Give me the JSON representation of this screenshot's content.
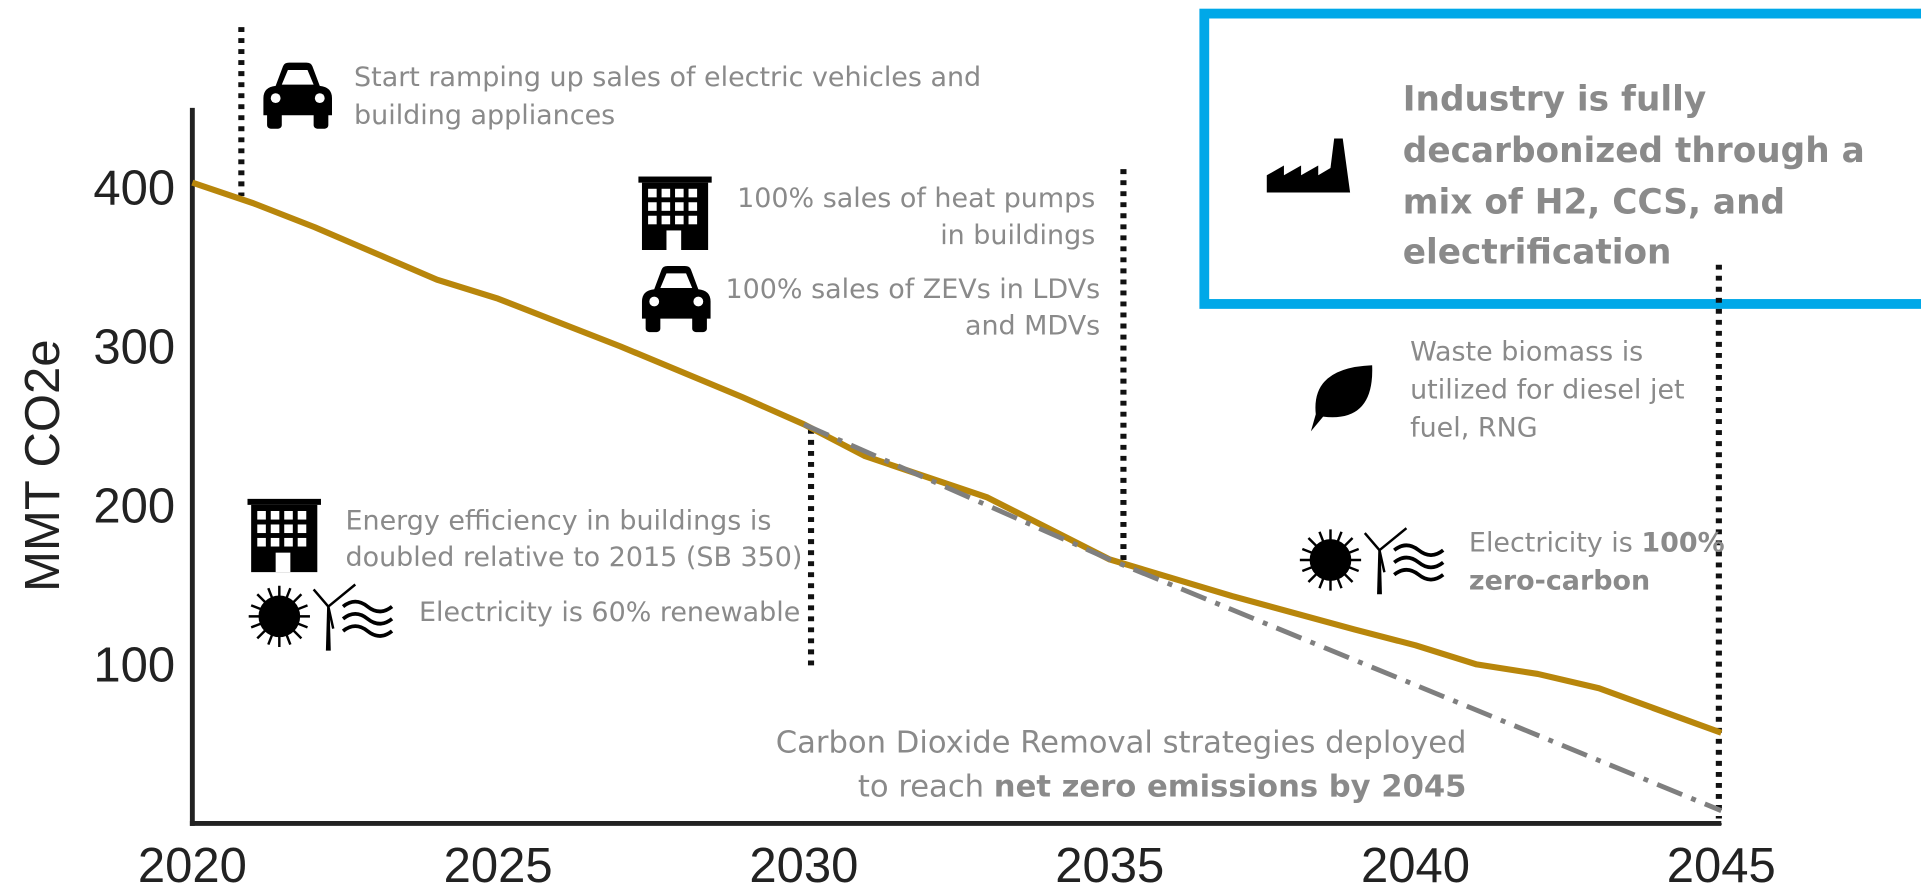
{
  "chart_data": {
    "type": "line",
    "ylabel": "MMT CO2e",
    "xlim": [
      2020,
      2045
    ],
    "ylim": [
      0,
      450
    ],
    "xticks": [
      2020,
      2025,
      2030,
      2035,
      2040,
      2045
    ],
    "yticks": [
      100,
      200,
      300,
      400
    ],
    "series": [
      {
        "color": "#b8860b",
        "style": "solid",
        "x": [
          2020,
          2021,
          2022,
          2024,
          2025,
          2027,
          2029,
          2030,
          2031,
          2033,
          2035,
          2037,
          2039,
          2040,
          2041,
          2042,
          2043,
          2045
        ],
        "values": [
          403,
          390,
          375,
          342,
          330,
          300,
          268,
          251,
          231,
          205,
          166,
          143,
          122,
          112,
          100,
          94,
          85,
          57
        ]
      },
      {
        "color": "#7f7f7f",
        "style": "dashdot",
        "x": [
          2030,
          2035,
          2045
        ],
        "values": [
          251,
          166,
          8
        ]
      }
    ],
    "annotations": {
      "ev": [
        "Start ramping up sales of electric vehicles and",
        "building appliances"
      ],
      "heat": [
        "100% sales of heat pumps",
        "in buildings"
      ],
      "zev": [
        "100% sales of ZEVs in LDVs",
        "and MDVs"
      ],
      "industry": [
        "Industry is fully",
        "decarbonized through a",
        "mix of H2, CCS, and",
        "electrification"
      ],
      "biomass": [
        "Waste biomass is",
        "utilized for diesel jet",
        "fuel, RNG"
      ],
      "efficiency": [
        "Energy efficiency in buildings is",
        "doubled relative to 2015 (SB 350)"
      ],
      "elec60": "Electricity is 60% renewable",
      "elec100": {
        "text": "Electricity is ",
        "bold": "100%",
        "line2": "zero-carbon"
      },
      "cdr": {
        "line1": "Carbon Dioxide Removal strategies deployed",
        "line2": "to reach ",
        "bold": "net zero emissions by 2045"
      }
    }
  }
}
